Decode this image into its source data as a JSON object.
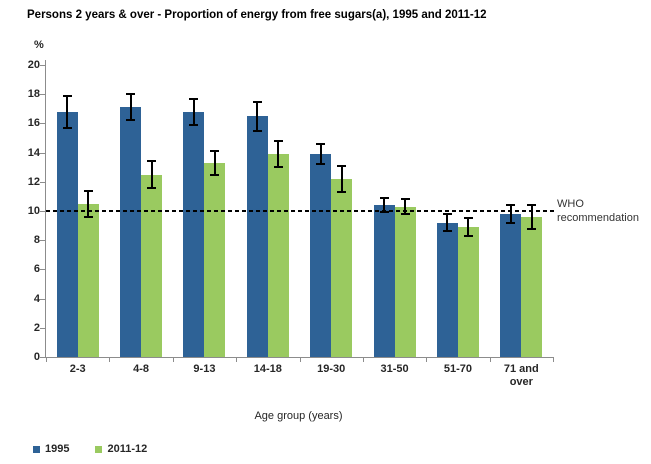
{
  "chart_data": {
    "type": "bar",
    "title": "Persons 2 years & over - Proportion of energy from free sugars(a), 1995 and 2011-12",
    "y_unit_label": "%",
    "xlabel": "Age group (years)",
    "categories": [
      "2-3",
      "4-8",
      "9-13",
      "14-18",
      "19-30",
      "31-50",
      "51-70",
      "71 and over"
    ],
    "series": [
      {
        "name": "1995",
        "color": "#2e6296",
        "values": [
          16.8,
          17.1,
          16.8,
          16.5,
          13.9,
          10.4,
          9.2,
          9.8
        ],
        "errors": [
          1.1,
          0.9,
          0.9,
          1.0,
          0.7,
          0.5,
          0.6,
          0.6
        ]
      },
      {
        "name": "2011-12",
        "color": "#9aca60",
        "values": [
          10.5,
          12.5,
          13.3,
          13.9,
          12.2,
          10.3,
          8.9,
          9.6
        ],
        "errors": [
          0.9,
          0.9,
          0.8,
          0.9,
          0.9,
          0.5,
          0.6,
          0.8
        ]
      }
    ],
    "ylim": [
      0,
      20
    ],
    "ytick_step": 2,
    "grid": false,
    "error_bars": true,
    "legend_position": "bottom-left",
    "reference_line": {
      "value": 10,
      "style": "dashed",
      "color": "#000000",
      "label": "WHO recommendation"
    },
    "axis_color": "#8c8c8c"
  }
}
